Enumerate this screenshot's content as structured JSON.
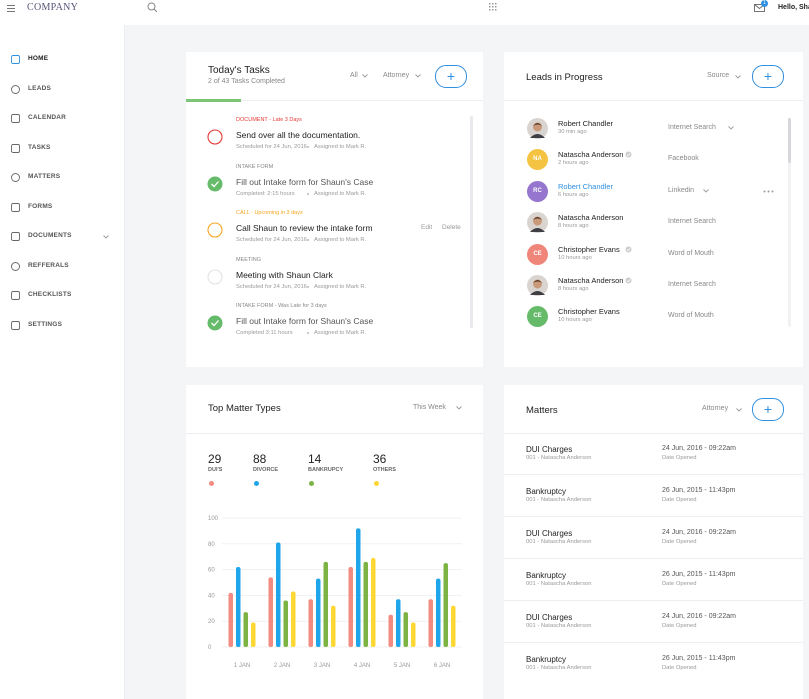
{
  "header": {
    "company": "COMPANY",
    "notifications": "1",
    "greeting": "Hello, Sha"
  },
  "sidebar": {
    "items": [
      "HOME",
      "LEADS",
      "CALENDAR",
      "TASKS",
      "MATTERS",
      "FORMS",
      "DOCUMENTS",
      "REFFERALS",
      "CHECKLISTS",
      "SETTINGS"
    ],
    "active": 0,
    "expandable": 6
  },
  "tasks": {
    "title": "Today's Tasks",
    "subtitle": "2 of 43 Tasks Completed",
    "filters": [
      "All",
      "Attorney"
    ],
    "add": "+",
    "items": [
      {
        "tag": "DOCUMENT - Late 3 Days",
        "status": "late",
        "title": "Send over all the documentation.",
        "meta": [
          "Scheduled for 24 Jun, 2016",
          "Assigned to Mark R."
        ]
      },
      {
        "tag": "INTAKE FORM",
        "status": "done",
        "title": "Fill out Intake form for Shaun's Case",
        "meta": [
          "Completed: 2:15 hours",
          "Assigned to Mark R."
        ]
      },
      {
        "tag": "CALL - Upcoming in 3 days",
        "status": "upcoming",
        "title": "Call Shaun to review the intake form",
        "meta": [
          "Scheduled for 24 Jun, 2016",
          "Assigned to Mark R."
        ],
        "actions": [
          "Edit",
          "Delete"
        ]
      },
      {
        "tag": "MEETING",
        "status": "open",
        "title": "Meeting with Shaun Clark",
        "meta": [
          "Scheduled for 24 Jun, 2016",
          "Assigned to Mark R."
        ]
      },
      {
        "tag": "INTAKE FORM - Was Late for 3 days",
        "status": "done",
        "title": "Fill out Intake form for Shaun's Case",
        "meta": [
          "Completed 3:11 hours",
          "Assigned to Mark R."
        ]
      }
    ]
  },
  "leads": {
    "title": "Leads in Progress",
    "filter": "Source",
    "add": "+",
    "items": [
      {
        "name": "Robert Chandler",
        "time": "30 min ago",
        "source": "Internet Search",
        "dropdown": true
      },
      {
        "initials": "NA",
        "color": "#f5c342",
        "name": "Natascha Anderson",
        "verified": true,
        "time": "2 hours ago",
        "source": "Facebook"
      },
      {
        "initials": "RC",
        "color": "#9575cd",
        "name": "Robert Chandler",
        "highlight": true,
        "time": "6 hours ago",
        "source": "Linkedin",
        "dropdown": true,
        "menu": true
      },
      {
        "name": "Natascha Anderson",
        "time": "8 hours ago",
        "source": "Internet Search"
      },
      {
        "initials": "CE",
        "color": "#f0857a",
        "name": "Christopher Evans",
        "verified": true,
        "time": "10 hours ago",
        "source": "Word of Mouth"
      },
      {
        "name": "Natascha Anderson",
        "verified": true,
        "time": "8 hours ago",
        "source": "Internet Search"
      },
      {
        "initials": "CE",
        "color": "#66bb6a",
        "name": "Christopher Evans",
        "time": "10 hours ago",
        "source": "Word of Mouth"
      }
    ]
  },
  "chart_data": {
    "type": "bar",
    "title": "Top Matter Types",
    "filter": "This Week",
    "categories": [
      "1 JAN",
      "2 JAN",
      "3 JAN",
      "4 JAN",
      "5 JAN",
      "6 JAN"
    ],
    "series": [
      {
        "name": "DUI'S",
        "total": 29,
        "color": "#f28b82",
        "values": [
          42,
          54,
          37,
          62,
          25,
          37
        ]
      },
      {
        "name": "DIVORCE",
        "total": 88,
        "color": "#1ea5ea",
        "values": [
          62,
          81,
          53,
          92,
          37,
          53
        ]
      },
      {
        "name": "BANKRUPCY",
        "total": 14,
        "color": "#7cb342",
        "values": [
          27,
          36,
          66,
          66,
          27,
          65
        ]
      },
      {
        "name": "OTHERS",
        "total": 36,
        "color": "#fdd835",
        "values": [
          19,
          43,
          32,
          69,
          19,
          32
        ]
      }
    ],
    "ylim": [
      0,
      100
    ],
    "yticks": [
      0,
      20,
      40,
      60,
      80,
      100
    ],
    "grid": true
  },
  "matters": {
    "title": "Matters",
    "filter": "Attorney",
    "add": "+",
    "items": [
      {
        "name": "DUI Charges",
        "client": "001 - Natascha Anderson",
        "date": "24 Jun, 2016 - 09:22am",
        "date_label": "Date Opened"
      },
      {
        "name": "Bankruptcy",
        "client": "001 - Natascha Anderson",
        "date": "26 Jun, 2015 - 11:43pm",
        "date_label": "Date Opened"
      },
      {
        "name": "DUI Charges",
        "client": "001 - Natascha Anderson",
        "date": "24 Jun, 2016 - 09:22am",
        "date_label": "Date Opened"
      },
      {
        "name": "Bankruptcy",
        "client": "001 - Natascha Anderson",
        "date": "26 Jun, 2015 - 11:43pm",
        "date_label": "Date Opened"
      },
      {
        "name": "DUI Charges",
        "client": "001 - Natascha Anderson",
        "date": "24 Jun, 2016 - 09:22am",
        "date_label": "Date Opened"
      },
      {
        "name": "Bankruptcy",
        "client": "001 - Natascha Anderson",
        "date": "26 Jun, 2015 - 11:43pm",
        "date_label": "Date Opened"
      }
    ]
  }
}
